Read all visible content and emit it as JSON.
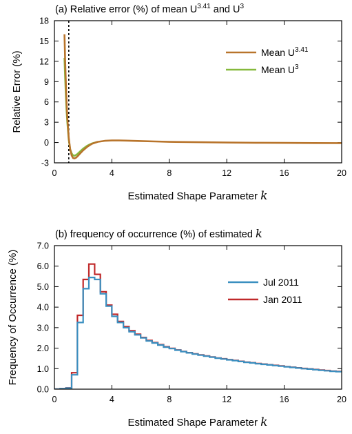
{
  "chart_data": [
    {
      "type": "line",
      "title": "(a) Relative error (%) of mean U",
      "title_sup1": "3.41",
      "title_mid": " and U",
      "title_sup2": "3",
      "xlabel": "Estimated Shape Parameter",
      "xlabel_var": "k",
      "ylabel": "Relative Error (%)",
      "xlim": [
        0,
        20
      ],
      "ylim": [
        -3,
        18
      ],
      "xticks": [
        "0",
        "4",
        "8",
        "12",
        "16",
        "20"
      ],
      "yticks": [
        "-3",
        "0",
        "3",
        "6",
        "9",
        "12",
        "15",
        "18"
      ],
      "vline_x": 1.0,
      "legend_position": "top-right",
      "colors": {
        "mean_u341": "#b8742b",
        "mean_u3": "#86b93c"
      },
      "series": [
        {
          "name": "Mean U",
          "name_sup": "3.41",
          "x": [
            0.7,
            0.75,
            0.8,
            0.85,
            0.9,
            1.0,
            1.1,
            1.2,
            1.3,
            1.4,
            1.5,
            1.6,
            1.8,
            2.0,
            2.3,
            2.6,
            3.0,
            3.5,
            4.0,
            4.5,
            5.0,
            6.0,
            7.0,
            8.0,
            10.0,
            12.0,
            14.0,
            16.0,
            18.0,
            20.0
          ],
          "y": [
            16.0,
            12.0,
            8.6,
            5.8,
            3.6,
            0.7,
            -1.0,
            -1.9,
            -2.3,
            -2.35,
            -2.25,
            -2.05,
            -1.6,
            -1.15,
            -0.6,
            -0.2,
            0.1,
            0.25,
            0.3,
            0.3,
            0.28,
            0.22,
            0.16,
            0.1,
            0.05,
            0.0,
            -0.03,
            -0.05,
            -0.07,
            -0.08
          ]
        },
        {
          "name": "Mean U",
          "name_sup": "3",
          "x": [
            0.7,
            0.75,
            0.8,
            0.85,
            0.9,
            1.0,
            1.1,
            1.2,
            1.3,
            1.4,
            1.5,
            1.6,
            1.8,
            2.0,
            2.3,
            2.6,
            3.0
          ],
          "y": [
            12.5,
            9.5,
            6.8,
            4.6,
            2.9,
            0.4,
            -1.0,
            -1.6,
            -1.9,
            -1.95,
            -1.85,
            -1.7,
            -1.3,
            -0.9,
            -0.45,
            -0.15,
            0.1
          ]
        }
      ]
    },
    {
      "type": "line",
      "title": "(b) frequency of occurrence (%) of estimated",
      "title_var": "k",
      "xlabel": "Estimated Shape Parameter",
      "xlabel_var": "k",
      "ylabel": "Frequency of Occurrence (%)",
      "xlim": [
        0,
        20
      ],
      "ylim": [
        0,
        7
      ],
      "xticks": [
        "0",
        "4",
        "8",
        "12",
        "16",
        "20"
      ],
      "yticks": [
        "0.0",
        "1.0",
        "2.0",
        "3.0",
        "4.0",
        "5.0",
        "6.0",
        "7.0"
      ],
      "step_width": 0.4,
      "legend_position": "top-right",
      "colors": {
        "jul": "#3a8fc0",
        "jan": "#c0292a"
      },
      "series": [
        {
          "name": "Jul 2011",
          "bin_starts": [
            0.0,
            0.4,
            0.8,
            1.2,
            1.6,
            2.0,
            2.4,
            2.8,
            3.2,
            3.6,
            4.0,
            4.4,
            4.8,
            5.2,
            5.6,
            6.0,
            6.4,
            6.8,
            7.2,
            7.6,
            8.0,
            8.4,
            8.8,
            9.2,
            9.6,
            10.0,
            10.4,
            10.8,
            11.2,
            11.6,
            12.0,
            12.4,
            12.8,
            13.2,
            13.6,
            14.0,
            14.4,
            14.8,
            15.2,
            15.6,
            16.0,
            16.4,
            16.8,
            17.2,
            17.6,
            18.0,
            18.4,
            18.8,
            19.2,
            19.6
          ],
          "values": [
            0.0,
            0.02,
            0.05,
            0.7,
            3.25,
            4.9,
            5.45,
            5.35,
            4.65,
            4.05,
            3.55,
            3.25,
            3.0,
            2.8,
            2.65,
            2.5,
            2.35,
            2.25,
            2.15,
            2.05,
            1.98,
            1.9,
            1.83,
            1.77,
            1.71,
            1.66,
            1.61,
            1.56,
            1.51,
            1.47,
            1.43,
            1.39,
            1.35,
            1.31,
            1.28,
            1.24,
            1.21,
            1.18,
            1.15,
            1.12,
            1.09,
            1.06,
            1.03,
            1.0,
            0.98,
            0.95,
            0.92,
            0.9,
            0.87,
            0.85
          ]
        },
        {
          "name": "Jan 2011",
          "bin_starts": [
            0.0,
            0.4,
            0.8,
            1.2,
            1.6,
            2.0,
            2.4,
            2.8,
            3.2,
            3.6,
            4.0,
            4.4,
            4.8,
            5.2,
            5.6,
            6.0,
            6.4,
            6.8,
            7.2,
            7.6,
            8.0,
            8.4,
            8.8,
            9.2,
            9.6,
            10.0,
            10.4,
            10.8,
            11.2,
            11.6,
            12.0,
            12.4,
            12.8,
            13.2,
            13.6,
            14.0,
            14.4,
            14.8,
            15.2,
            15.6,
            16.0,
            16.4,
            16.8,
            17.2,
            17.6,
            18.0,
            18.4,
            18.8,
            19.2,
            19.6
          ],
          "values": [
            0.0,
            0.02,
            0.06,
            0.8,
            3.6,
            5.35,
            6.1,
            5.6,
            4.75,
            4.1,
            3.65,
            3.3,
            3.05,
            2.85,
            2.68,
            2.52,
            2.38,
            2.27,
            2.17,
            2.07,
            1.99,
            1.91,
            1.84,
            1.78,
            1.72,
            1.67,
            1.62,
            1.57,
            1.52,
            1.48,
            1.44,
            1.4,
            1.36,
            1.32,
            1.29,
            1.25,
            1.22,
            1.19,
            1.16,
            1.13,
            1.1,
            1.07,
            1.04,
            1.01,
            0.99,
            0.96,
            0.93,
            0.91,
            0.88,
            0.86
          ]
        }
      ]
    }
  ]
}
